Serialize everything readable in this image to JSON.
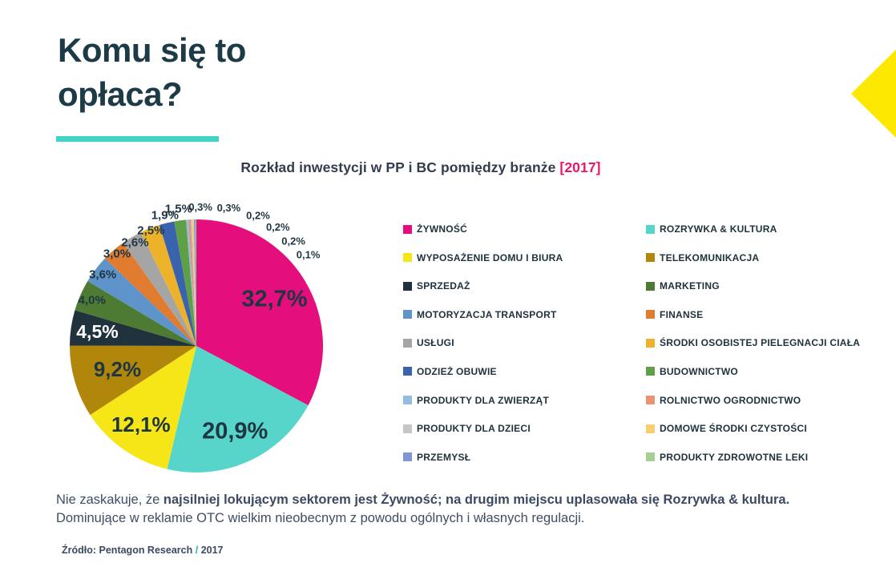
{
  "header": {
    "title": "Komu się to opłaca?"
  },
  "decor": {
    "accent_bar_color": "#3ed4c6",
    "arrow_color": "#fde802",
    "title_color": "#1d3a47"
  },
  "chart": {
    "title_main": "Rozkład inwestycji w PP i BC pomiędzy branże",
    "title_year": "[2017]",
    "title_year_color": "#ee1566"
  },
  "chart_data": {
    "type": "pie",
    "title": "Rozkład inwestycji w PP i BC pomiędzy branże [2017]",
    "unit": "%",
    "start_angle_deg": 0,
    "direction": "clockwise",
    "legend_position": "right, two columns",
    "slices": [
      {
        "label": "ŻYWNOŚĆ",
        "value": 32.7,
        "display": "32,7%",
        "color": "#e40e7d"
      },
      {
        "label": "ROZRYWKA & KULTURA",
        "value": 20.9,
        "display": "20,9%",
        "color": "#58d5ca"
      },
      {
        "label": "WYPOSAŻENIE DOMU I BIURA",
        "value": 12.1,
        "display": "12,1%",
        "color": "#f7e617"
      },
      {
        "label": "TELEKOMUNIKACJA",
        "value": 9.2,
        "display": "9,2%",
        "color": "#b1870b"
      },
      {
        "label": "SPRZEDAŻ",
        "value": 4.5,
        "display": "4,5%",
        "color": "#20333d"
      },
      {
        "label": "MARKETING",
        "value": 4.0,
        "display": "4,0%",
        "color": "#4e7b34"
      },
      {
        "label": "MOTORYZACJA TRANSPORT",
        "value": 3.6,
        "display": "3,6%",
        "color": "#5e94c9"
      },
      {
        "label": "FINANSE",
        "value": 3.0,
        "display": "3,0%",
        "color": "#e07b30"
      },
      {
        "label": "USŁUGI",
        "value": 2.6,
        "display": "2,6%",
        "color": "#a5a5a5"
      },
      {
        "label": "ŚRODKI OSOBISTEJ PIELEGNACJI CIAŁA",
        "value": 2.5,
        "display": "2,5%",
        "color": "#ecb22a"
      },
      {
        "label": "ODZIEŻ OBUWIE",
        "value": 1.9,
        "display": "1,9%",
        "color": "#3a63ae"
      },
      {
        "label": "BUDOWNICTWO",
        "value": 1.5,
        "display": "1,5%",
        "color": "#5fa046"
      },
      {
        "label": "PRODUKTY DLA ZWIERZĄT",
        "value": 0.3,
        "display": "0,3%",
        "color": "#92bce2"
      },
      {
        "label": "ROLNICTWO OGRODNICTWO",
        "value": 0.3,
        "display": "0,3%",
        "color": "#e9926d"
      },
      {
        "label": "PRODUKTY DLA DZIECI",
        "value": 0.2,
        "display": "0,2%",
        "color": "#c6c6c6"
      },
      {
        "label": "DOMOWE ŚRODKI CZYSTOŚCI",
        "value": 0.2,
        "display": "0,2%",
        "color": "#f9cf6e"
      },
      {
        "label": "PRZEMYSŁ",
        "value": 0.2,
        "display": "0,2%",
        "color": "#8094d6"
      },
      {
        "label": "PRODUKTY ZDROWOTNE LEKI",
        "value": 0.1,
        "display": "0,1%",
        "color": "#a4d093"
      }
    ],
    "label_color": "#1f3642",
    "label_color_on_dark": "#ffffff"
  },
  "note": {
    "intro": "Nie zaskakuje, że ",
    "bold": "najsilniej lokującym sektorem jest Żywność; na drugim miejscu uplasowała się Rozrywka & kultura.",
    "line2": "Dominujące w reklamie OTC wielkim nieobecnym z powodu ogólnych i własnych regulacji."
  },
  "source": {
    "label": "Źródło: Pentagon Research",
    "separator": "/",
    "year": "2017"
  }
}
